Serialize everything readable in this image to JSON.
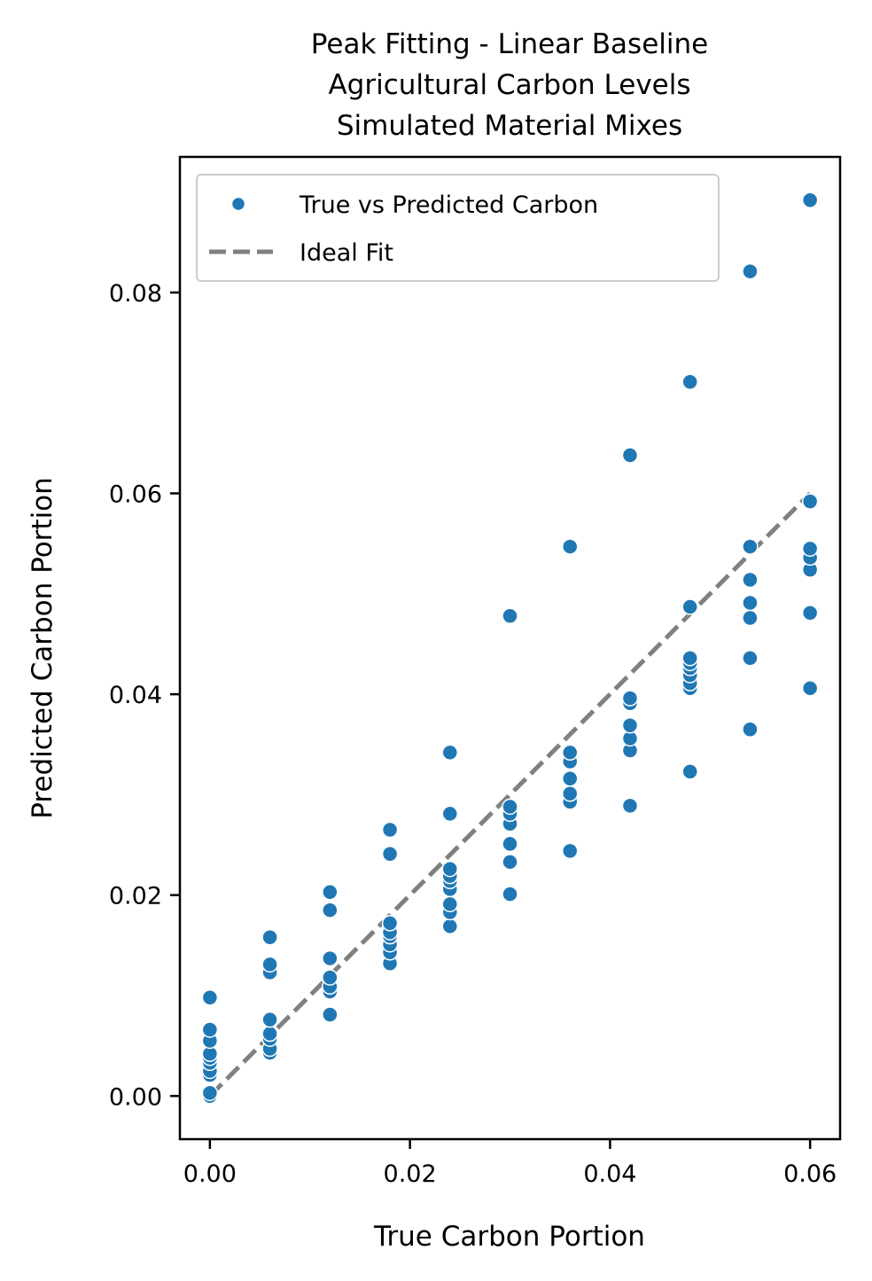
{
  "chart_data": {
    "type": "scatter",
    "title_lines": [
      "Peak Fitting - Linear Baseline",
      "Agricultural Carbon Levels",
      "Simulated Material Mixes"
    ],
    "xlabel": "True Carbon Portion",
    "ylabel": "Predicted Carbon Portion",
    "xlim": [
      -0.003,
      0.063
    ],
    "ylim": [
      -0.0043,
      0.0935
    ],
    "xticks": [
      0.0,
      0.02,
      0.04,
      0.06
    ],
    "xtick_labels": [
      "0.00",
      "0.02",
      "0.04",
      "0.06"
    ],
    "yticks": [
      0.0,
      0.02,
      0.04,
      0.06,
      0.08
    ],
    "ytick_labels": [
      "0.00",
      "0.02",
      "0.04",
      "0.06",
      "0.08"
    ],
    "grid": false,
    "legend_position": "top-left",
    "legend": [
      "True vs Predicted Carbon",
      "Ideal Fit"
    ],
    "colors": {
      "points": "#1f77b4",
      "ideal_line": "#808080"
    },
    "series": [
      {
        "name": "True vs Predicted Carbon",
        "points": [
          [
            0.0,
            0.0
          ],
          [
            0.0,
            0.0003
          ],
          [
            0.0,
            0.0021
          ],
          [
            0.0,
            0.0025
          ],
          [
            0.0,
            0.0033
          ],
          [
            0.0,
            0.0038
          ],
          [
            0.0,
            0.0042
          ],
          [
            0.0,
            0.0055
          ],
          [
            0.0,
            0.0066
          ],
          [
            0.0,
            0.0098
          ],
          [
            0.006,
            0.0043
          ],
          [
            0.006,
            0.0047
          ],
          [
            0.006,
            0.0057
          ],
          [
            0.006,
            0.0062
          ],
          [
            0.006,
            0.0076
          ],
          [
            0.006,
            0.0123
          ],
          [
            0.006,
            0.0131
          ],
          [
            0.006,
            0.0158
          ],
          [
            0.012,
            0.0081
          ],
          [
            0.012,
            0.0104
          ],
          [
            0.012,
            0.0109
          ],
          [
            0.012,
            0.0118
          ],
          [
            0.012,
            0.0137
          ],
          [
            0.012,
            0.0185
          ],
          [
            0.012,
            0.0203
          ],
          [
            0.018,
            0.0132
          ],
          [
            0.018,
            0.0143
          ],
          [
            0.018,
            0.0151
          ],
          [
            0.018,
            0.0159
          ],
          [
            0.018,
            0.0163
          ],
          [
            0.018,
            0.0172
          ],
          [
            0.018,
            0.0241
          ],
          [
            0.018,
            0.0265
          ],
          [
            0.024,
            0.0169
          ],
          [
            0.024,
            0.0183
          ],
          [
            0.024,
            0.0191
          ],
          [
            0.024,
            0.0206
          ],
          [
            0.024,
            0.0214
          ],
          [
            0.024,
            0.0219
          ],
          [
            0.024,
            0.0226
          ],
          [
            0.024,
            0.0281
          ],
          [
            0.024,
            0.0342
          ],
          [
            0.03,
            0.0201
          ],
          [
            0.03,
            0.0233
          ],
          [
            0.03,
            0.0251
          ],
          [
            0.03,
            0.0271
          ],
          [
            0.03,
            0.0281
          ],
          [
            0.03,
            0.0288
          ],
          [
            0.03,
            0.0478
          ],
          [
            0.036,
            0.0244
          ],
          [
            0.036,
            0.0293
          ],
          [
            0.036,
            0.0301
          ],
          [
            0.036,
            0.0316
          ],
          [
            0.036,
            0.0333
          ],
          [
            0.036,
            0.0342
          ],
          [
            0.036,
            0.0547
          ],
          [
            0.042,
            0.0289
          ],
          [
            0.042,
            0.0344
          ],
          [
            0.042,
            0.0356
          ],
          [
            0.042,
            0.0369
          ],
          [
            0.042,
            0.0391
          ],
          [
            0.042,
            0.0396
          ],
          [
            0.042,
            0.0638
          ],
          [
            0.048,
            0.0323
          ],
          [
            0.048,
            0.0406
          ],
          [
            0.048,
            0.0411
          ],
          [
            0.048,
            0.0419
          ],
          [
            0.048,
            0.0426
          ],
          [
            0.048,
            0.0431
          ],
          [
            0.048,
            0.0436
          ],
          [
            0.048,
            0.0487
          ],
          [
            0.048,
            0.0711
          ],
          [
            0.054,
            0.0365
          ],
          [
            0.054,
            0.0436
          ],
          [
            0.054,
            0.0476
          ],
          [
            0.054,
            0.0491
          ],
          [
            0.054,
            0.0514
          ],
          [
            0.054,
            0.0547
          ],
          [
            0.054,
            0.0821
          ],
          [
            0.06,
            0.0406
          ],
          [
            0.06,
            0.0481
          ],
          [
            0.06,
            0.0524
          ],
          [
            0.06,
            0.0536
          ],
          [
            0.06,
            0.0545
          ],
          [
            0.06,
            0.0592
          ],
          [
            0.06,
            0.0892
          ]
        ]
      },
      {
        "name": "Ideal Fit",
        "points": [
          [
            0.0,
            0.0
          ],
          [
            0.06,
            0.06
          ]
        ]
      }
    ]
  }
}
